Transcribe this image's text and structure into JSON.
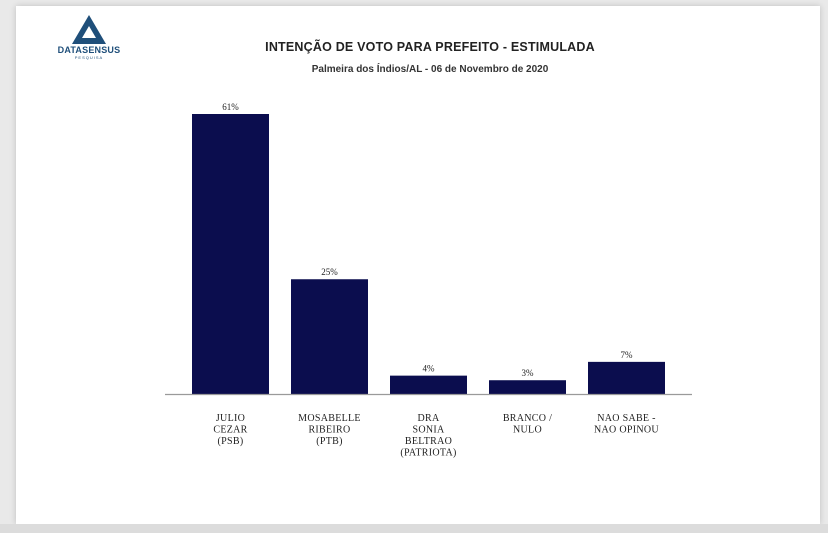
{
  "logo": {
    "name": "DATASENSUS",
    "sub": "PESQUISA"
  },
  "colors": {
    "bar": "#0b0d4e",
    "axis": "#9a9a9a",
    "logo": "#1f4f7a"
  },
  "chart_data": {
    "type": "bar",
    "title": "INTENÇÃO DE VOTO PARA PREFEITO - ESTIMULADA",
    "subtitle": "Palmeira dos Índios/AL - 06 de Novembro de 2020",
    "categories": [
      [
        "JULIO",
        "CEZAR",
        "(PSB)"
      ],
      [
        "MOSABELLE",
        "RIBEIRO",
        "(PTB)"
      ],
      [
        "DRA",
        "SONIA",
        "BELTRAO",
        "(PATRIOTA)"
      ],
      [
        "BRANCO /",
        "NULO"
      ],
      [
        "NAO SABE  -",
        "NAO OPINOU"
      ]
    ],
    "values": [
      61,
      25,
      4,
      3,
      7
    ],
    "value_labels": [
      "61%",
      "25%",
      "4%",
      "3%",
      "7%"
    ],
    "unit": "%",
    "ylim": [
      0,
      61
    ],
    "grid": false,
    "legend": "none"
  }
}
